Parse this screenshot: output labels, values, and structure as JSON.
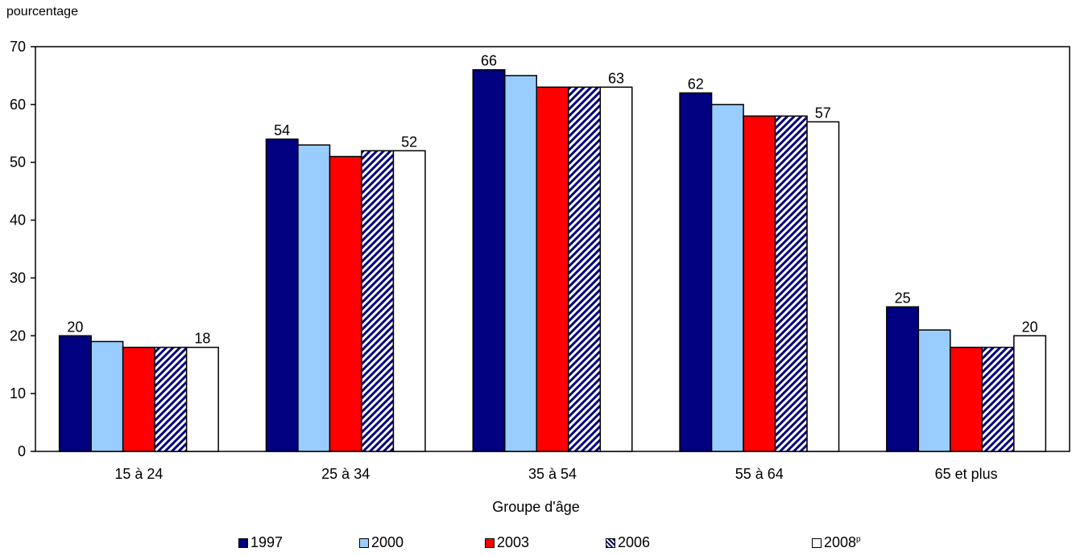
{
  "chart_data": {
    "type": "bar",
    "ylabel": "pourcentage",
    "xlabel": "Groupe d'âge",
    "ylim": [
      0,
      70
    ],
    "yticks": [
      0,
      10,
      20,
      30,
      40,
      50,
      60,
      70
    ],
    "categories": [
      "15 à 24",
      "25 à 34",
      "35 à 54",
      "55 à 64",
      "65 et plus"
    ],
    "series": [
      {
        "name": "1997",
        "values": [
          20,
          54,
          66,
          62,
          25
        ],
        "color": "#000080",
        "pattern": "solid"
      },
      {
        "name": "2000",
        "values": [
          19,
          53,
          65,
          60,
          21
        ],
        "color": "#99ccff",
        "pattern": "solid"
      },
      {
        "name": "2003",
        "values": [
          18,
          51,
          63,
          58,
          18
        ],
        "color": "#ff0000",
        "pattern": "solid"
      },
      {
        "name": "2006",
        "values": [
          18,
          52,
          63,
          58,
          18
        ],
        "color": "#000080",
        "pattern": "diagonal-hatch"
      },
      {
        "name": "2008",
        "superscript": "p",
        "values": [
          18,
          52,
          63,
          57,
          20
        ],
        "color": "#ffffff",
        "pattern": "solid"
      }
    ],
    "data_labels": [
      {
        "category": "15 à 24",
        "series": "1997",
        "text": "20"
      },
      {
        "category": "15 à 24",
        "series": "2008",
        "text": "18"
      },
      {
        "category": "25 à 34",
        "series": "1997",
        "text": "54"
      },
      {
        "category": "25 à 34",
        "series": "2008",
        "text": "52"
      },
      {
        "category": "35 à 54",
        "series": "1997",
        "text": "66"
      },
      {
        "category": "35 à 54",
        "series": "2008",
        "text": "63"
      },
      {
        "category": "55 à 64",
        "series": "1997",
        "text": "62"
      },
      {
        "category": "55 à 64",
        "series": "2008",
        "text": "57"
      },
      {
        "category": "65 et plus",
        "series": "1997",
        "text": "25"
      },
      {
        "category": "65 et plus",
        "series": "2008",
        "text": "20"
      }
    ],
    "grid": false,
    "legend_position": "bottom"
  }
}
